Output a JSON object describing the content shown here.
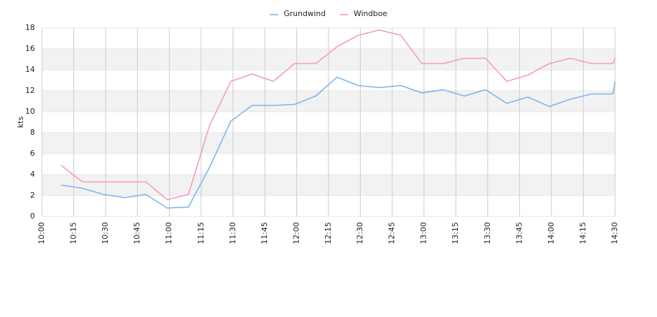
{
  "chart_data": {
    "type": "line",
    "y_label": "kts",
    "x": [
      "10:09",
      "10:19",
      "10:29",
      "10:39",
      "10:49",
      "10:59",
      "11:09",
      "11:19",
      "11:29",
      "11:39",
      "11:49",
      "11:59",
      "12:09",
      "12:19",
      "12:29",
      "12:39",
      "12:49",
      "12:59",
      "13:09",
      "13:19",
      "13:29",
      "13:39",
      "13:49",
      "13:59",
      "14:09",
      "14:19",
      "14:29",
      "14:30"
    ],
    "series": [
      {
        "name": "Grundwind",
        "color": "#7cb5ec",
        "values": [
          3.0,
          2.7,
          2.1,
          1.8,
          2.1,
          0.8,
          0.9,
          4.7,
          9.1,
          10.6,
          10.6,
          10.7,
          11.5,
          13.3,
          12.5,
          12.3,
          12.5,
          11.8,
          12.1,
          11.5,
          12.1,
          10.8,
          11.4,
          10.5,
          11.2,
          11.7,
          11.7,
          12.9
        ]
      },
      {
        "name": "Windboe",
        "color": "#f49ac1",
        "values": [
          4.9,
          3.3,
          3.3,
          3.3,
          3.3,
          1.6,
          2.1,
          8.7,
          12.9,
          13.6,
          12.9,
          14.6,
          14.6,
          16.2,
          17.3,
          17.8,
          17.3,
          14.6,
          14.6,
          15.1,
          15.1,
          12.9,
          13.5,
          14.6,
          15.1,
          14.6,
          14.6,
          15.1
        ]
      }
    ],
    "xlim": [
      "10:00",
      "14:30"
    ],
    "xticks": [
      "10:00",
      "10:15",
      "10:30",
      "10:45",
      "11:00",
      "11:15",
      "11:30",
      "11:45",
      "12:00",
      "12:15",
      "12:30",
      "12:45",
      "13:00",
      "13:15",
      "13:30",
      "13:45",
      "14:00",
      "14:15",
      "14:30"
    ],
    "ylim": [
      0,
      18
    ],
    "yticks": [
      0,
      2,
      4,
      6,
      8,
      10,
      12,
      14,
      16,
      18
    ],
    "grid": true,
    "legend": "top"
  }
}
